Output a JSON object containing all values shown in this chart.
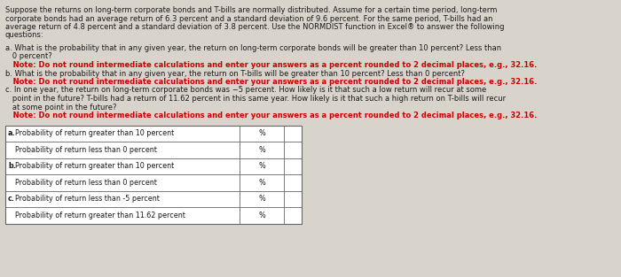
{
  "bg_color": "#d8d4cc",
  "text_color": "#1a1a1a",
  "note_color": "#cc0000",
  "table_bg": "#ffffff",
  "table_border": "#666666",
  "font_size_main": 6.0,
  "font_size_table": 5.8,
  "para_lines": [
    "Suppose the returns on long-term corporate bonds and T-bills are normally distributed. Assume for a certain time period, long-term",
    "corporate bonds had an average return of 6.3 percent and a standard deviation of 9.6 percent. For the same period, T-bills had an",
    "average return of 4.8 percent and a standard deviation of 3.8 percent. Use the NORMDIST function in Excel® to answer the following",
    "questions:"
  ],
  "q_a_lines": [
    [
      "normal",
      "a. What is the probability that in any given year, the return on long-term corporate bonds will be greater than 10 percent? Less than"
    ],
    [
      "normal",
      "   0 percent?"
    ],
    [
      "note",
      "   Note: Do not round intermediate calculations and enter your answers as a percent rounded to 2 decimal places, e.g., 32.16."
    ]
  ],
  "q_b_lines": [
    [
      "normal",
      "b. What is the probability that in any given year, the return on T-bills will be greater than 10 percent? Less than 0 percent?"
    ],
    [
      "note",
      "   Note: Do not round intermediate calculations and enter your answers as a percent rounded to 2 decimal places, e.g., 32.16."
    ]
  ],
  "q_c_lines": [
    [
      "normal",
      "c. In one year, the return on long-term corporate bonds was −5 percent. How likely is it that such a low return will recur at some"
    ],
    [
      "normal",
      "   point in the future? T-bills had a return of 11.62 percent in this same year. How likely is it that such a high return on T-bills will recur"
    ],
    [
      "normal",
      "   at some point in the future?"
    ],
    [
      "note",
      "   Note: Do not round intermediate calculations and enter your answers as a percent rounded to 2 decimal places, e.g., 32.16."
    ]
  ],
  "table_rows": [
    [
      "a.",
      "Probability of return greater than 10 percent"
    ],
    [
      "",
      "Probability of return less than 0 percent"
    ],
    [
      "b.",
      "Probability of return greater than 10 percent"
    ],
    [
      "",
      "Probability of return less than 0 percent"
    ],
    [
      "c.",
      "Probability of return less than -5 percent"
    ],
    [
      "",
      "Probability of return greater than 11.62 percent"
    ]
  ]
}
